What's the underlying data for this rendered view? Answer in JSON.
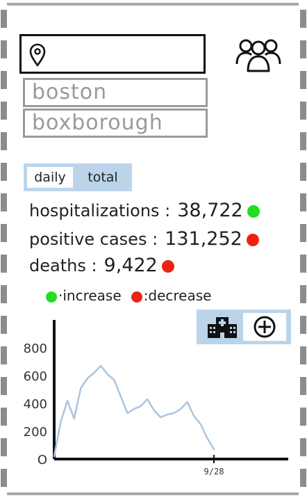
{
  "search": {
    "value": "",
    "placeholder": ""
  },
  "suggestions": [
    "boston",
    "boxborough"
  ],
  "toggle": {
    "options": [
      "daily",
      "total"
    ],
    "selected": "daily"
  },
  "stats": [
    {
      "label": "hospitalizations :",
      "value": "38,722",
      "trend": "increase",
      "color": "#22dd22"
    },
    {
      "label": "positive cases :",
      "value": "131,252",
      "trend": "decrease",
      "color": "#ee2211"
    },
    {
      "label": "deaths :",
      "value": "9,422",
      "trend": "decrease",
      "color": "#ee2211"
    }
  ],
  "legend": {
    "increase": {
      "label": "increase",
      "color": "#22dd22"
    },
    "decrease": {
      "label": "decrease",
      "color": "#ee2211"
    }
  },
  "toolbar": {
    "hospital_icon": "hospital-icon",
    "add_icon": "plus-circle-icon"
  },
  "header": {
    "group_icon": "people-group-icon"
  },
  "colors": {
    "accent": "#bcd4ea",
    "line": "#a9c4e2"
  },
  "chart_data": {
    "type": "line",
    "ylim": [
      0,
      900
    ],
    "yticks": [
      0,
      200,
      400,
      600,
      800
    ],
    "ytick_labels": [
      "O",
      "200",
      "400",
      "600",
      "800"
    ],
    "xtick_labels": [
      "9/28"
    ],
    "xtick_positions": [
      24
    ],
    "grid": false,
    "series": [
      {
        "x": [
          0,
          1,
          2,
          3,
          4,
          5,
          6,
          7,
          8,
          9,
          10,
          11,
          12,
          13,
          14,
          15,
          16,
          17,
          18,
          19,
          20,
          21,
          22,
          23,
          24
        ],
        "y": [
          20,
          270,
          420,
          290,
          510,
          580,
          620,
          670,
          610,
          570,
          450,
          330,
          360,
          380,
          430,
          350,
          300,
          320,
          330,
          360,
          410,
          310,
          250,
          150,
          70
        ]
      }
    ]
  }
}
